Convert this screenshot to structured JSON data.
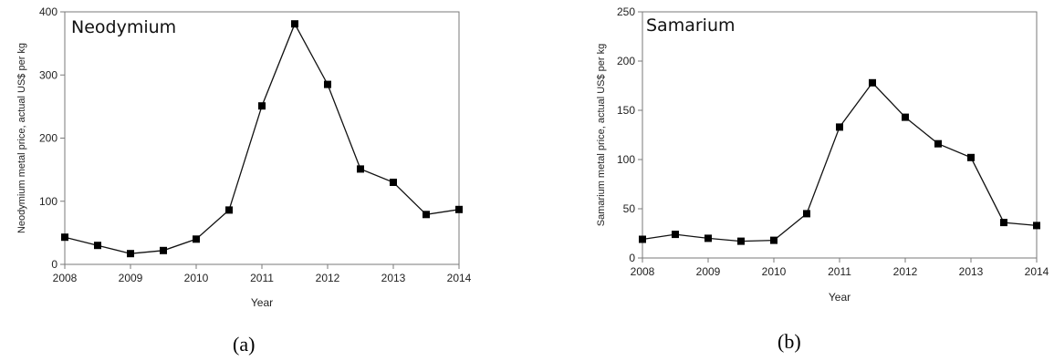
{
  "captions": [
    "(a)",
    "(b)"
  ],
  "chart_data": [
    {
      "type": "line",
      "title": "Neodymium",
      "xlabel": "Year",
      "ylabel": "Neodymium metal price, actual US$ per kg",
      "xlim": [
        2008,
        2014
      ],
      "ylim": [
        0,
        400
      ],
      "x_ticks": [
        2008,
        2009,
        2010,
        2011,
        2012,
        2013,
        2014
      ],
      "y_ticks": [
        0,
        100,
        200,
        300,
        400
      ],
      "grid": false,
      "marker": "square",
      "series": [
        {
          "x": [
            2008,
            2008.5,
            2009,
            2009.5,
            2010,
            2010.5,
            2011,
            2011.5,
            2012,
            2012.5,
            2013,
            2013.5,
            2014
          ],
          "values": [
            43,
            30,
            17,
            22,
            40,
            86,
            251,
            381,
            285,
            151,
            130,
            79,
            87
          ]
        }
      ]
    },
    {
      "type": "line",
      "title": "Samarium",
      "xlabel": "Year",
      "ylabel": "Samarium metal price, actual US$ per kg",
      "xlim": [
        2008,
        2014
      ],
      "ylim": [
        0,
        250
      ],
      "x_ticks": [
        2008,
        2009,
        2010,
        2011,
        2012,
        2013,
        2014
      ],
      "y_ticks": [
        0,
        50,
        100,
        150,
        200,
        250
      ],
      "grid": false,
      "marker": "square",
      "series": [
        {
          "x": [
            2008,
            2008.5,
            2009,
            2009.5,
            2010,
            2010.5,
            2011,
            2011.5,
            2012,
            2012.5,
            2013,
            2013.5,
            2014
          ],
          "values": [
            19,
            24,
            20,
            17,
            18,
            45,
            133,
            178,
            143,
            116,
            102,
            36,
            33
          ]
        }
      ]
    }
  ]
}
